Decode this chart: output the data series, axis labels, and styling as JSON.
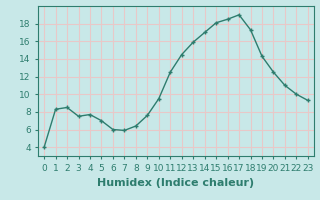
{
  "x": [
    0,
    1,
    2,
    3,
    4,
    5,
    6,
    7,
    8,
    9,
    10,
    11,
    12,
    13,
    14,
    15,
    16,
    17,
    18,
    19,
    20,
    21,
    22,
    23
  ],
  "y": [
    4,
    8.3,
    8.5,
    7.5,
    7.7,
    7.0,
    6.0,
    5.9,
    6.4,
    7.6,
    9.5,
    12.5,
    14.5,
    15.9,
    17.0,
    18.1,
    18.5,
    19.0,
    17.3,
    14.3,
    12.5,
    11.0,
    10.0,
    9.3
  ],
  "line_color": "#2e7d6e",
  "marker": "+",
  "bg_color": "#c8e8e8",
  "grid_color": "#e8c8c8",
  "xlabel": "Humidex (Indice chaleur)",
  "ylim": [
    3,
    20
  ],
  "xlim": [
    -0.5,
    23.5
  ],
  "yticks": [
    4,
    6,
    8,
    10,
    12,
    14,
    16,
    18
  ],
  "xticks": [
    0,
    1,
    2,
    3,
    4,
    5,
    6,
    7,
    8,
    9,
    10,
    11,
    12,
    13,
    14,
    15,
    16,
    17,
    18,
    19,
    20,
    21,
    22,
    23
  ],
  "xtick_labels": [
    "0",
    "1",
    "2",
    "3",
    "4",
    "5",
    "6",
    "7",
    "8",
    "9",
    "10",
    "11",
    "12",
    "13",
    "14",
    "15",
    "16",
    "17",
    "18",
    "19",
    "20",
    "21",
    "22",
    "23"
  ],
  "tick_fontsize": 6.5,
  "xlabel_fontsize": 8,
  "line_width": 1.0,
  "marker_size": 3.5,
  "marker_ew": 1.0
}
